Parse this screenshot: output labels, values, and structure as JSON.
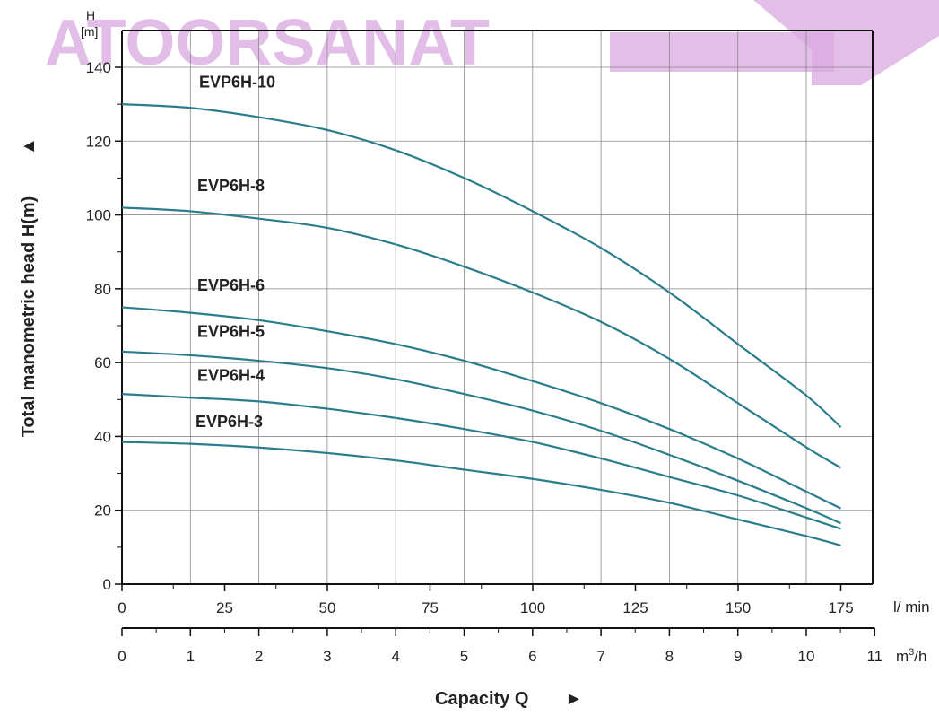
{
  "watermark": {
    "text": "ATOORSANAT",
    "color": "#d9a8e0"
  },
  "chart_data": {
    "type": "line",
    "title": "",
    "ylabel": "Total manometric head H(m)",
    "ylabel_arrow": "▲",
    "y_unit_top": "H",
    "y_unit_bottom": "[m]",
    "xlabel": "Capacity Q",
    "xlabel_arrow": "►",
    "x_unit_primary": "l/ min",
    "x_unit_secondary": "m³/h",
    "x_unit_secondary_base": "m",
    "x_unit_secondary_sup": "3",
    "x_unit_secondary_tail": "/h",
    "ylim": [
      0,
      145
    ],
    "xlim": [
      0,
      177
    ],
    "grid": true,
    "line_color": "#2a7d8c",
    "y_ticks": [
      "0",
      "20",
      "40",
      "60",
      "80",
      "100",
      "120",
      "140"
    ],
    "y_tick_values": [
      0,
      20,
      40,
      60,
      80,
      100,
      120,
      140
    ],
    "x_ticks_lmin": [
      "0",
      "25",
      "50",
      "75",
      "100",
      "125",
      "150",
      "175"
    ],
    "x_tick_values_lmin": [
      0,
      25,
      50,
      75,
      100,
      125,
      150,
      175
    ],
    "x_ticks_m3h": [
      "0",
      "1",
      "2",
      "3",
      "4",
      "5",
      "6",
      "7",
      "8",
      "9",
      "10",
      "11"
    ],
    "x_tick_values_m3h": [
      0,
      1,
      2,
      3,
      4,
      5,
      6,
      7,
      8,
      9,
      10,
      11
    ],
    "x": [
      0,
      16.7,
      33.3,
      50,
      66.7,
      83.3,
      100,
      116.7,
      133.3,
      150,
      166.7,
      175
    ],
    "series": [
      {
        "name": "EVP6H-10",
        "values": [
          130,
          129,
          126.5,
          123,
          117.5,
          110,
          101,
          91,
          79,
          65,
          51,
          42.5
        ]
      },
      {
        "name": "EVP6H-8",
        "values": [
          102,
          101,
          99,
          96.5,
          92,
          86,
          79,
          71,
          61,
          49,
          37,
          31.5
        ]
      },
      {
        "name": "EVP6H-6",
        "values": [
          75,
          73.5,
          71.5,
          68.5,
          65,
          60.5,
          55,
          49,
          42,
          34,
          25,
          20.5
        ]
      },
      {
        "name": "EVP6H-5",
        "values": [
          63,
          62,
          60.5,
          58.5,
          55.5,
          51.5,
          47,
          41.5,
          35,
          28,
          20.5,
          16.5
        ]
      },
      {
        "name": "EVP6H-4",
        "values": [
          51.5,
          50.5,
          49.5,
          47.5,
          45,
          42,
          38.5,
          34,
          29,
          24,
          18,
          15
        ]
      },
      {
        "name": "EVP6H-3",
        "values": [
          38.5,
          38,
          37,
          35.5,
          33.5,
          31,
          28.5,
          25.5,
          22,
          17.5,
          13,
          10.5
        ]
      }
    ]
  }
}
